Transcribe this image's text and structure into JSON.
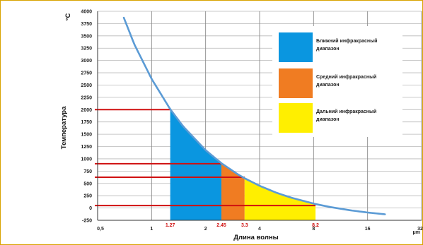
{
  "chart_data": {
    "type": "area",
    "title": "",
    "xlabel": "Длина волны",
    "ylabel": "Температура",
    "y_unit": "°C",
    "x_unit": "μm",
    "x_scale": "log2",
    "xlim": [
      0.5,
      32
    ],
    "ylim": [
      -250,
      4000
    ],
    "x_ticks": [
      "0,5",
      "1",
      "2",
      "4",
      "8",
      "16",
      "32"
    ],
    "y_ticks": [
      "4000",
      "3750",
      "3500",
      "3250",
      "3000",
      "2750",
      "2500",
      "2250",
      "2000",
      "1750",
      "1500",
      "1250",
      "1000",
      "750",
      "500",
      "250",
      "0",
      "-250"
    ],
    "grid": true,
    "curve": {
      "name": "",
      "color": "#5b9bd5",
      "x": [
        0.7,
        0.8,
        1.0,
        1.27,
        1.5,
        2.0,
        2.45,
        3.0,
        3.3,
        4.0,
        5.0,
        6.0,
        8.2,
        10.0,
        13.0,
        16.0,
        20.0
      ],
      "y": [
        3870,
        3333,
        2625,
        2009,
        1659,
        1176,
        910,
        693,
        605,
        451,
        306,
        210,
        80,
        17,
        -50,
        -92,
        -128
      ]
    },
    "regions": [
      {
        "label": "Ближний инфракрасный диапазон",
        "x_from": 1.27,
        "x_to": 2.45,
        "color": "#0a96e0"
      },
      {
        "label": "Средний инфракрасный диапазон",
        "x_from": 2.45,
        "x_to": 3.3,
        "color": "#f07c22"
      },
      {
        "label": "Дальний инфракрасный диапазон",
        "x_from": 3.3,
        "x_to": 8.2,
        "color": "#ffef00"
      }
    ],
    "markers": [
      {
        "x": 1.27,
        "x_label": "1.27",
        "y": 2000
      },
      {
        "x": 2.45,
        "x_label": "2.45",
        "y": 900
      },
      {
        "x": 3.3,
        "x_label": "3.3",
        "y": 625
      },
      {
        "x": 8.2,
        "x_label": "8.2",
        "y": 50
      }
    ],
    "marker_color": "#d01010",
    "legend_placement": "top-right"
  }
}
